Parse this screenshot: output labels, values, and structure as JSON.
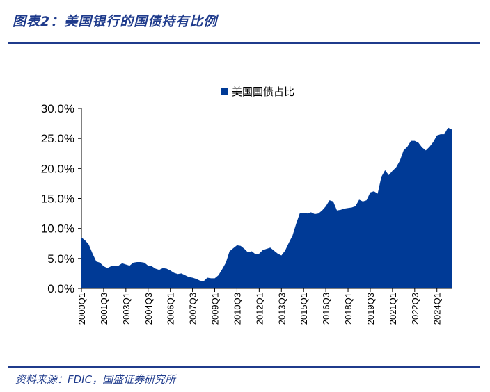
{
  "figure": {
    "title": "图表2：美国银行的国债持有比例",
    "source": "资料来源：FDIC，国盛证券研究所"
  },
  "chart_data": {
    "type": "area",
    "title": "",
    "legend": {
      "label": "美国国债占比",
      "position": "top-center"
    },
    "series_color": "#003a96",
    "ylim": [
      0,
      0.3
    ],
    "y_ticks": [
      0.0,
      0.05,
      0.1,
      0.15,
      0.2,
      0.25,
      0.3
    ],
    "y_tick_labels": [
      "0.0%",
      "5.0%",
      "10.0%",
      "15.0%",
      "20.0%",
      "25.0%",
      "30.0%"
    ],
    "x_tick_labels": [
      "2000Q1",
      "2001Q3",
      "2003Q1",
      "2004Q3",
      "2006Q1",
      "2007Q3",
      "2009Q1",
      "2010Q3",
      "2012Q1",
      "2013Q3",
      "2015Q1",
      "2016Q3",
      "2018Q1",
      "2019Q3",
      "2021Q1",
      "2022Q3",
      "2024Q1"
    ],
    "x_tick_every": 6,
    "start_quarter": "2000Q1",
    "series": [
      {
        "name": "美国国债占比",
        "values": [
          0.085,
          0.08,
          0.073,
          0.058,
          0.045,
          0.043,
          0.037,
          0.034,
          0.037,
          0.037,
          0.038,
          0.042,
          0.04,
          0.038,
          0.043,
          0.044,
          0.044,
          0.043,
          0.038,
          0.037,
          0.033,
          0.031,
          0.034,
          0.033,
          0.03,
          0.026,
          0.024,
          0.025,
          0.022,
          0.019,
          0.018,
          0.016,
          0.013,
          0.012,
          0.018,
          0.017,
          0.017,
          0.022,
          0.032,
          0.043,
          0.062,
          0.067,
          0.072,
          0.071,
          0.066,
          0.06,
          0.062,
          0.057,
          0.058,
          0.064,
          0.066,
          0.068,
          0.063,
          0.058,
          0.055,
          0.063,
          0.076,
          0.088,
          0.108,
          0.126,
          0.126,
          0.125,
          0.127,
          0.124,
          0.125,
          0.13,
          0.137,
          0.147,
          0.145,
          0.13,
          0.131,
          0.133,
          0.134,
          0.135,
          0.137,
          0.148,
          0.145,
          0.147,
          0.16,
          0.162,
          0.158,
          0.186,
          0.197,
          0.189,
          0.196,
          0.202,
          0.213,
          0.23,
          0.236,
          0.246,
          0.246,
          0.243,
          0.235,
          0.23,
          0.236,
          0.244,
          0.255,
          0.257,
          0.257,
          0.268,
          0.265
        ]
      }
    ]
  }
}
